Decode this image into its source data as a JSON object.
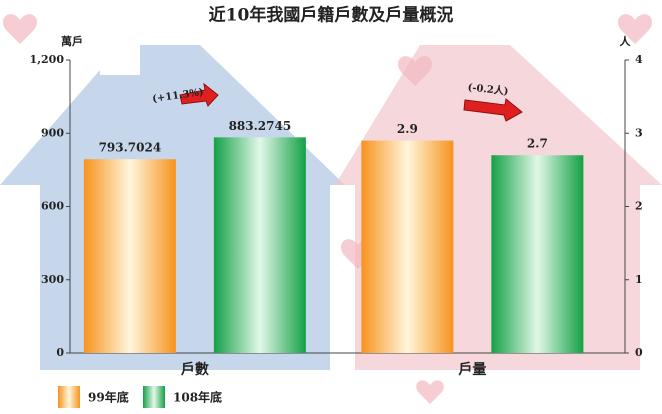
{
  "chart_data": {
    "type": "bar",
    "title": "近10年我國戶籍戶數及戶量概況",
    "y_label": "萬戶",
    "y2_label": "人",
    "categories": [
      "戶數",
      "戶量"
    ],
    "category_axes": [
      "y",
      "y2"
    ],
    "series": [
      {
        "name": "99年底",
        "color": "#f7931e",
        "values": [
          793.7024,
          2.9
        ]
      },
      {
        "name": "108年底",
        "color": "#14a046",
        "values": [
          883.2745,
          2.7
        ]
      }
    ],
    "annotations": [
      "(+11.3%)",
      "(-0.2人)"
    ],
    "ylim": [
      0,
      1200
    ],
    "yticks": [
      0,
      300,
      600,
      900,
      {
        "value": 1200,
        "label": "1,200"
      }
    ],
    "y2lim": [
      0,
      4
    ],
    "y2ticks": [
      0,
      1,
      2,
      3,
      4
    ],
    "grid": false
  }
}
